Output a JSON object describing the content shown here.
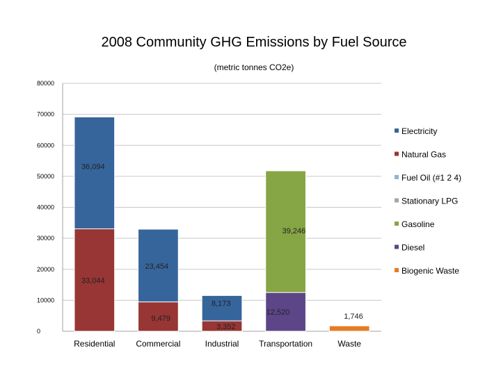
{
  "chart_data": {
    "type": "bar",
    "stacked": true,
    "title": "2008 Community GHG Emissions by Fuel Source",
    "subtitle": "(metric tonnes CO2e)",
    "xlabel": "",
    "ylabel": "",
    "ylim": [
      0,
      80000
    ],
    "yticks": [
      "0",
      "10000",
      "20000",
      "30000",
      "40000",
      "50000",
      "60000",
      "70000",
      "80000"
    ],
    "grid": true,
    "legend_position": "right",
    "categories": [
      "Residential",
      "Commercial",
      "Industrial",
      "Transportation",
      "Waste"
    ],
    "series": [
      {
        "name": "Electricity",
        "color": "#36659b",
        "values": [
          36094,
          23454,
          8173,
          0,
          0
        ],
        "labels": [
          "36,094",
          "23,454",
          "8,173",
          "",
          ""
        ]
      },
      {
        "name": "Natural Gas",
        "color": "#973634",
        "values": [
          33044,
          9479,
          3352,
          0,
          0
        ],
        "labels": [
          "33,044",
          "9,479",
          "3,352",
          "",
          ""
        ]
      },
      {
        "name": "Fuel Oil (#1 2 4)",
        "color": "#8fb3d3",
        "values": [
          0,
          0,
          0,
          0,
          0
        ],
        "labels": [
          "",
          "",
          "",
          "",
          ""
        ]
      },
      {
        "name": "Stationary LPG",
        "color": "#a6a6a6",
        "values": [
          0,
          0,
          0,
          0,
          0
        ],
        "labels": [
          "",
          "",
          "",
          "",
          ""
        ]
      },
      {
        "name": "Gasoline",
        "color": "#86a544",
        "values": [
          0,
          0,
          0,
          39246,
          0
        ],
        "labels": [
          "",
          "",
          "",
          "39,246",
          ""
        ]
      },
      {
        "name": "Diesel",
        "color": "#5c4687",
        "values": [
          0,
          0,
          0,
          12520,
          0
        ],
        "labels": [
          "",
          "",
          "",
          "12,520",
          ""
        ]
      },
      {
        "name": "Biogenic Waste",
        "color": "#e67c22",
        "values": [
          0,
          0,
          0,
          0,
          1746
        ],
        "labels": [
          "",
          "",
          "",
          "",
          "1,746"
        ]
      }
    ]
  }
}
